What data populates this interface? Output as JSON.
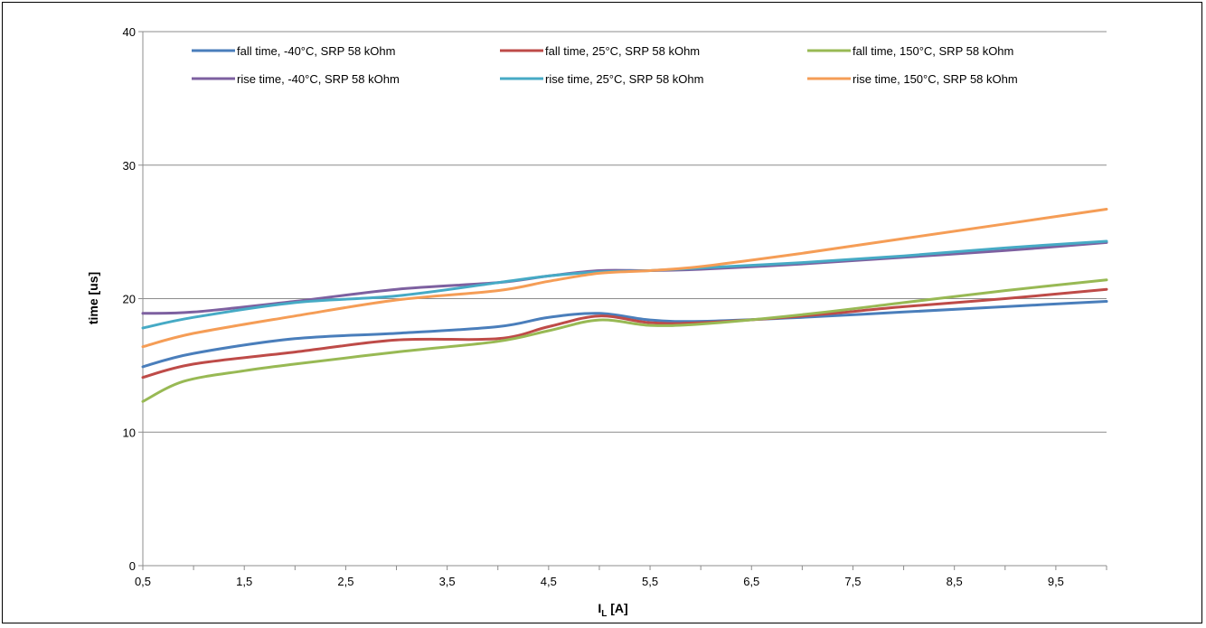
{
  "chart_data": {
    "type": "line",
    "title": "",
    "xlabel": "I",
    "xlabel_subscript": "L",
    "xlabel_unit": " [A]",
    "ylabel": "time [us]",
    "xlim": [
      0.5,
      10
    ],
    "ylim": [
      0,
      40
    ],
    "x_ticks": [
      "0,5",
      "1,5",
      "2,5",
      "3,5",
      "4,5",
      "5,5",
      "6,5",
      "7,5",
      "8,5",
      "9,5"
    ],
    "x_tick_values": [
      0.5,
      1.5,
      2.5,
      3.5,
      4.5,
      5.5,
      6.5,
      7.5,
      8.5,
      9.5
    ],
    "y_ticks": [
      "0",
      "10",
      "20",
      "30",
      "40"
    ],
    "y_tick_values": [
      0,
      10,
      20,
      30,
      40
    ],
    "grid": "horizontal",
    "legend_position": "top",
    "series": [
      {
        "name": "fall time, -40°C, SRP 58 kOhm",
        "color": "#4a7ebb",
        "x": [
          0.5,
          1,
          2,
          3,
          4,
          4.5,
          5,
          5.5,
          6,
          7,
          8,
          9,
          10
        ],
        "y": [
          14.9,
          15.9,
          17.0,
          17.4,
          17.9,
          18.6,
          18.9,
          18.4,
          18.3,
          18.6,
          19.0,
          19.4,
          19.8
        ]
      },
      {
        "name": "fall time, 25°C, SRP 58 kOhm",
        "color": "#be4b48",
        "x": [
          0.5,
          1,
          2,
          3,
          4,
          4.5,
          5,
          5.5,
          6,
          7,
          8,
          9,
          10
        ],
        "y": [
          14.1,
          15.1,
          16.0,
          16.9,
          17.0,
          17.9,
          18.7,
          18.2,
          18.2,
          18.7,
          19.4,
          20.0,
          20.7
        ]
      },
      {
        "name": "fall time, 150°C, SRP 58 kOhm",
        "color": "#98b954",
        "x": [
          0.5,
          0.9,
          1.5,
          2,
          3,
          4,
          4.5,
          5,
          5.5,
          6,
          7,
          8,
          9,
          10
        ],
        "y": [
          12.3,
          13.8,
          14.6,
          15.1,
          16.0,
          16.8,
          17.6,
          18.4,
          18.0,
          18.1,
          18.8,
          19.7,
          20.6,
          21.4
        ]
      },
      {
        "name": "rise time, -40°C, SRP 58 kOhm",
        "color": "#7d60a0",
        "x": [
          0.5,
          1,
          2,
          3,
          4,
          4.5,
          5,
          5.5,
          6,
          7,
          8,
          9,
          10
        ],
        "y": [
          18.9,
          19.0,
          19.8,
          20.7,
          21.2,
          21.7,
          22.1,
          22.1,
          22.2,
          22.6,
          23.1,
          23.6,
          24.2
        ]
      },
      {
        "name": "rise time, 25°C, SRP 58 kOhm",
        "color": "#46aac5",
        "x": [
          0.5,
          1,
          2,
          3,
          4,
          4.5,
          5,
          5.5,
          6,
          7,
          8,
          9,
          10
        ],
        "y": [
          17.8,
          18.6,
          19.7,
          20.2,
          21.2,
          21.7,
          22.0,
          22.1,
          22.3,
          22.7,
          23.2,
          23.8,
          24.3
        ]
      },
      {
        "name": "rise time, 150°C, SRP 58 kOhm",
        "color": "#f59d56",
        "x": [
          0.5,
          1,
          2,
          3,
          4,
          4.5,
          5,
          5.5,
          6,
          7,
          8,
          9,
          10
        ],
        "y": [
          16.4,
          17.4,
          18.7,
          19.9,
          20.6,
          21.3,
          21.9,
          22.1,
          22.4,
          23.4,
          24.5,
          25.6,
          26.7
        ]
      }
    ]
  }
}
